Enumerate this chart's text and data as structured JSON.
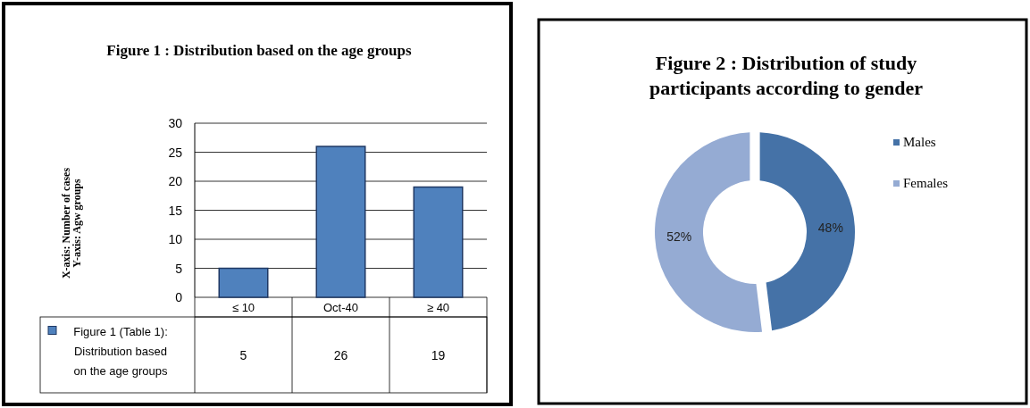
{
  "chart_data": [
    {
      "type": "bar",
      "title": "Figure 1 : Distribution  based on the age groups",
      "categories": [
        "≤ 10",
        "Oct-40",
        "≥ 40"
      ],
      "series": [
        {
          "name": "Figure 1 (Table 1): Distribution based on the age groups",
          "color": "#4f81bd",
          "values": [
            5,
            26,
            19
          ]
        }
      ],
      "ylim": [
        0,
        30
      ],
      "yticks": [
        0,
        5,
        10,
        15,
        20,
        25,
        30
      ],
      "grid": "y",
      "data_labels": true,
      "legend": "bottom",
      "annotations": [
        "X-axis: Number of cases",
        "Y-axis: Agw groups"
      ]
    },
    {
      "type": "donut",
      "title": "Figure 2 : Distribution of study participants  according to gender",
      "categories": [
        "Males",
        "Females"
      ],
      "values": [
        48,
        52
      ],
      "colors": [
        "#4572a7",
        "#95abd3"
      ],
      "value_labels": [
        "48%",
        "52%"
      ],
      "legend": "right"
    }
  ]
}
